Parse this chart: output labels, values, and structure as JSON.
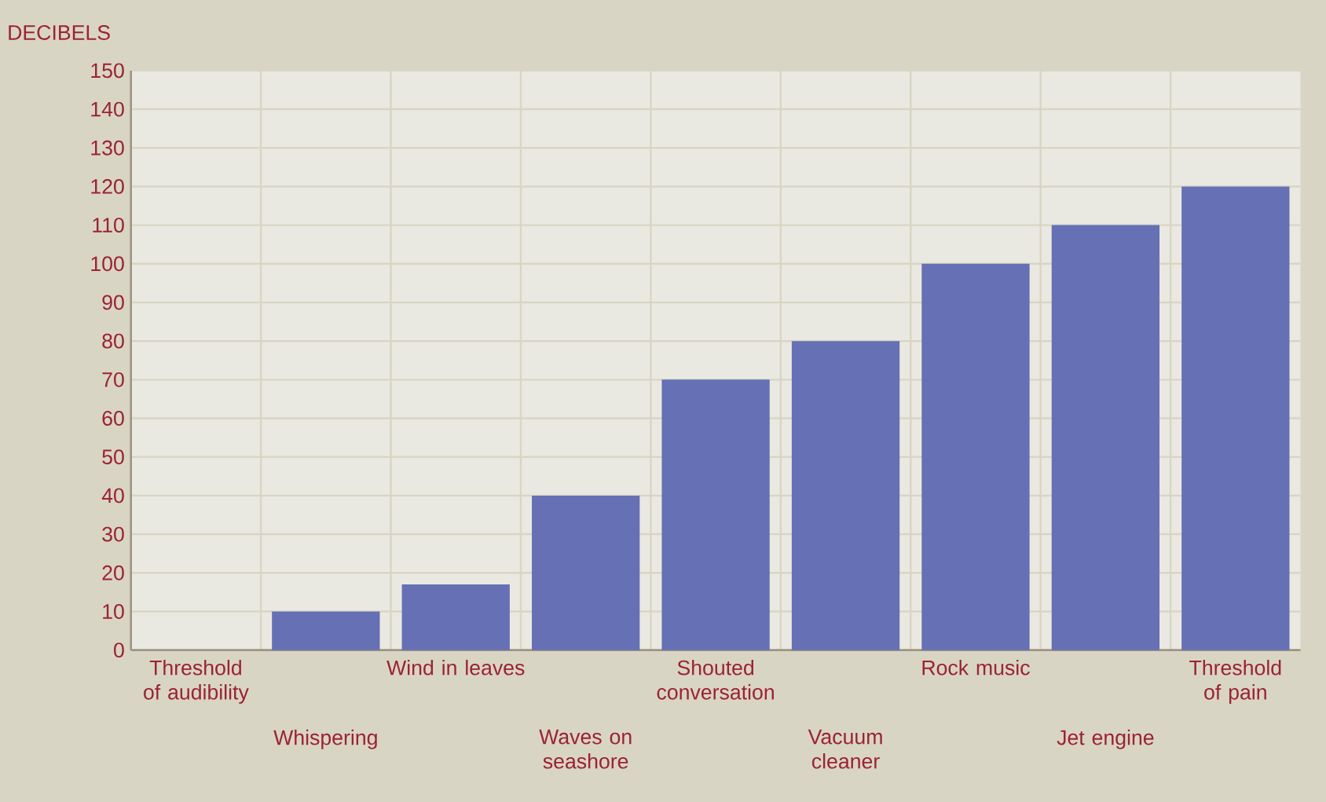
{
  "chart_data": {
    "type": "bar",
    "ylabel": "DECIBELS",
    "categories": [
      "Threshold of audibility",
      "Whispering",
      "Wind in leaves",
      "Waves on seashore",
      "Shouted conversation",
      "Vacuum cleaner",
      "Rock music",
      "Jet engine",
      "Threshold of pain"
    ],
    "values": [
      0,
      10,
      17,
      40,
      70,
      80,
      100,
      110,
      120
    ],
    "color": "#6670b4",
    "ylim": [
      0,
      150
    ],
    "yticks": [
      0,
      10,
      20,
      30,
      40,
      50,
      60,
      70,
      80,
      90,
      100,
      110,
      120,
      130,
      140,
      150
    ],
    "grid": true
  }
}
